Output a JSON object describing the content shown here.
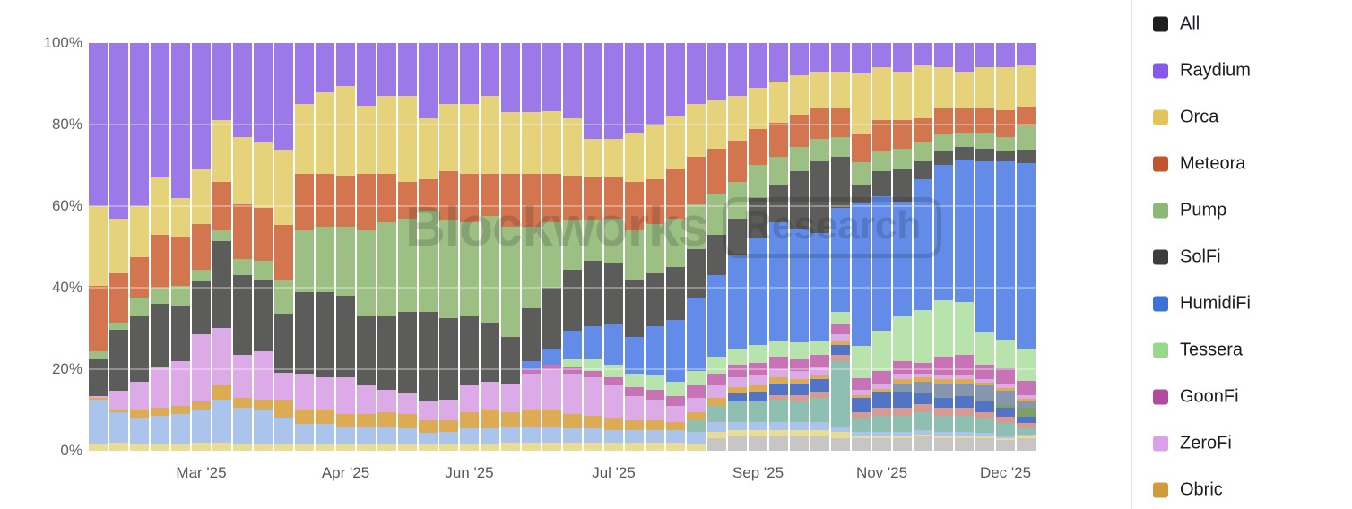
{
  "y_axis": {
    "ticks": [
      "100%",
      "80%",
      "60%",
      "40%",
      "20%",
      "0%"
    ]
  },
  "x_axis": {
    "ticks": [
      {
        "label": "Mar '25",
        "bar": 5
      },
      {
        "label": "Apr '25",
        "bar": 12
      },
      {
        "label": "Jun '25",
        "bar": 18
      },
      {
        "label": "Jul '25",
        "bar": 25
      },
      {
        "label": "Sep '25",
        "bar": 32
      },
      {
        "label": "Nov '25",
        "bar": 38
      },
      {
        "label": "Dec '25",
        "bar": 44
      }
    ]
  },
  "watermark": {
    "brand": "Blockworks",
    "badge": "Research"
  },
  "legend": {
    "items": [
      {
        "label": "All",
        "color": "#1f1f1f"
      },
      {
        "label": "Raydium",
        "color": "#8659ea"
      },
      {
        "label": "Orca",
        "color": "#e2c45a"
      },
      {
        "label": "Meteora",
        "color": "#c2552c"
      },
      {
        "label": "Pump",
        "color": "#8cb873"
      },
      {
        "label": "SolFi",
        "color": "#3d3d3d"
      },
      {
        "label": "HumidiFi",
        "color": "#3b72d9"
      },
      {
        "label": "Tessera",
        "color": "#97d98b"
      },
      {
        "label": "GoonFi",
        "color": "#b5489f"
      },
      {
        "label": "ZeroFi",
        "color": "#d9a1e8"
      },
      {
        "label": "Obric",
        "color": "#d19b3b"
      }
    ]
  },
  "chart_data": {
    "type": "bar",
    "stacked": true,
    "percent_of_total": true,
    "unit": "%",
    "n_bars": 46,
    "ylim": [
      0,
      100
    ],
    "grid": "horizontal 20% steps, overlaid white on bars",
    "legend_position": "right",
    "note": "weekly bars Feb 2025 - Dec 2025; series listed bottom-to-top of stack; values are approximate % share read from pixels",
    "series": [
      {
        "name": "unlabeled-light-gray",
        "color": "#c7c6c4",
        "in_legend": false,
        "values": [
          0,
          0,
          0,
          0,
          0,
          0,
          0,
          0,
          0,
          0,
          0,
          0,
          0,
          0,
          0,
          0,
          0,
          0,
          0,
          0,
          0,
          0,
          0,
          0,
          0,
          0,
          0,
          0,
          0,
          0,
          3,
          3.5,
          3.5,
          3.5,
          3.5,
          3.5,
          3,
          3,
          3,
          3,
          3.5,
          3,
          3,
          3,
          2.5,
          3
        ]
      },
      {
        "name": "unlabeled-pale-yellow",
        "color": "#e9dd96",
        "in_legend": false,
        "values": [
          1.5,
          2,
          1.5,
          1.5,
          1.5,
          2,
          2,
          1.5,
          1.5,
          1.5,
          1.5,
          1.5,
          1.5,
          1.5,
          1.5,
          1.5,
          1.5,
          1.5,
          1.5,
          1.5,
          2,
          2,
          2,
          2,
          2,
          2,
          2,
          2,
          2,
          1.5,
          1.5,
          1.5,
          1.5,
          1.5,
          1.5,
          1.5,
          1.5,
          0.5,
          0.5,
          0.5,
          0.5,
          0.5,
          0.5,
          0.5,
          0.5,
          0.7
        ]
      },
      {
        "name": "unlabeled-pale-blue",
        "color": "#abc4ec",
        "in_legend": false,
        "values": [
          11,
          7.5,
          6.5,
          7,
          7.5,
          8,
          10.5,
          9,
          8.5,
          6.5,
          5,
          5,
          4.5,
          4.5,
          4.5,
          4,
          3,
          3,
          4,
          4,
          4,
          4,
          4,
          3.5,
          3.5,
          3,
          3,
          3,
          3,
          3,
          2.5,
          2,
          2,
          2,
          2,
          2,
          1.5,
          1,
          1,
          1,
          1,
          1,
          1,
          0.8,
          0.8,
          0.3
        ]
      },
      {
        "name": "unlabeled-teal",
        "color": "#8fbfb0",
        "in_legend": false,
        "values": [
          0,
          0,
          0,
          0,
          0,
          0,
          0,
          0,
          0,
          0,
          0,
          0,
          0,
          0,
          0,
          0,
          0,
          0,
          0,
          0,
          0,
          0,
          0,
          0,
          0,
          0,
          0,
          0,
          0,
          3,
          4,
          5,
          5,
          5.5,
          5,
          6,
          16,
          3.5,
          4,
          4,
          4.5,
          4,
          4,
          3.5,
          3,
          1.5
        ]
      },
      {
        "name": "unlabeled-salmon",
        "color": "#d69a93",
        "in_legend": false,
        "values": [
          0,
          0,
          0,
          0,
          0,
          0,
          0,
          0,
          0,
          0,
          0,
          0,
          0,
          0,
          0,
          0,
          0,
          0,
          0,
          0,
          0,
          0,
          0,
          0,
          0,
          0,
          0,
          0,
          0,
          0,
          0,
          0,
          0,
          1,
          1.5,
          1.5,
          1.5,
          1.5,
          2,
          2,
          2,
          2,
          2,
          1.7,
          1.5,
          1.3
        ]
      },
      {
        "name": "unlabeled-navy-blue",
        "color": "#5274c7",
        "in_legend": false,
        "values": [
          0,
          0,
          0,
          0,
          0,
          0,
          0,
          0,
          0,
          0,
          0,
          0,
          0,
          0,
          0,
          0,
          0,
          0,
          0,
          0,
          0,
          0,
          0,
          0,
          0,
          0,
          0,
          0,
          0,
          0,
          0,
          2,
          2.5,
          3,
          3,
          3,
          2.5,
          3.5,
          4,
          4,
          2.5,
          2.5,
          3,
          2.5,
          2.2,
          1.5
        ]
      },
      {
        "name": "unlabeled-olive-green",
        "color": "#7ca065",
        "in_legend": false,
        "values": [
          0,
          0,
          0,
          0,
          0,
          0,
          0,
          0,
          0,
          0,
          0,
          0,
          0,
          0,
          0,
          0,
          0,
          0,
          0,
          0,
          0,
          0,
          0,
          0,
          0,
          0,
          0,
          0,
          0,
          0,
          0,
          0,
          0,
          0,
          0,
          0,
          0,
          0,
          0,
          0,
          0,
          0,
          0,
          0,
          0.8,
          2.2
        ]
      },
      {
        "name": "unlabeled-slate-blue",
        "color": "#8796af",
        "in_legend": false,
        "values": [
          0,
          0,
          0,
          0,
          0,
          0,
          0,
          0,
          0,
          0,
          0,
          0,
          0,
          0,
          0,
          0,
          0,
          0,
          0,
          0,
          0,
          0,
          0,
          0,
          0,
          0,
          0,
          0,
          0,
          0,
          0,
          0,
          0,
          0,
          0,
          0,
          0,
          0,
          0,
          2,
          3,
          3.5,
          3,
          4,
          3.5,
          1.5
        ]
      },
      {
        "name": "Obric",
        "color": "#dcab53",
        "in_legend": true,
        "values": [
          0.5,
          0.7,
          2,
          2,
          2,
          2,
          3.5,
          2.5,
          2.5,
          4.5,
          3.5,
          3.5,
          3,
          3,
          3.5,
          3.5,
          3,
          3,
          4,
          4.5,
          3.5,
          4,
          4,
          3.5,
          3,
          3,
          2.5,
          2.5,
          2,
          2,
          2,
          1.5,
          1.5,
          1.5,
          1,
          1,
          1,
          0.7,
          0.7,
          1,
          1,
          1,
          1,
          0.7,
          0.5,
          0.7
        ]
      },
      {
        "name": "ZeroFi",
        "color": "#dcaae6",
        "in_legend": true,
        "values": [
          0.5,
          4.5,
          7,
          10,
          11,
          16.5,
          14,
          10.5,
          12,
          6.5,
          9,
          8,
          9,
          7,
          5.5,
          5,
          4.5,
          5,
          6.5,
          7,
          7,
          9,
          10,
          10,
          9.5,
          8,
          6,
          5,
          4,
          3.5,
          3,
          2.5,
          2.5,
          2,
          2,
          2,
          1.5,
          1.3,
          1.3,
          1.5,
          1,
          1,
          1,
          0.8,
          1,
          0.9
        ]
      },
      {
        "name": "GoonFi",
        "color": "#c873b6",
        "in_legend": true,
        "values": [
          0,
          0,
          0,
          0,
          0,
          0,
          0,
          0,
          0,
          0,
          0,
          0,
          0,
          0,
          0,
          0,
          0,
          0,
          0,
          0,
          0,
          1,
          1,
          1.5,
          1.5,
          2,
          2,
          2.5,
          2.5,
          3,
          3,
          3,
          3,
          3,
          3,
          3,
          2.5,
          2.8,
          3,
          3,
          2.5,
          4.5,
          5,
          3.5,
          4,
          3.5
        ]
      },
      {
        "name": "Tessera",
        "color": "#b9e3ad",
        "in_legend": true,
        "values": [
          0,
          0,
          0,
          0,
          0,
          0,
          0,
          0,
          0,
          0,
          0,
          0,
          0,
          0,
          0,
          0,
          0,
          0,
          0,
          0,
          0,
          0,
          0,
          2,
          3,
          3,
          3.5,
          3.5,
          3.5,
          3.5,
          4,
          4,
          4.5,
          4,
          4,
          3.5,
          3,
          8,
          10,
          11,
          13,
          14,
          13,
          8,
          7,
          8
        ]
      },
      {
        "name": "HumidiFi",
        "color": "#628ce8",
        "in_legend": true,
        "values": [
          0,
          0,
          0,
          0,
          0,
          0,
          0,
          0,
          0,
          0,
          0,
          0,
          0,
          0,
          0,
          0,
          0,
          0,
          0,
          0,
          0,
          2,
          4,
          7,
          8,
          10,
          9,
          12,
          15,
          18,
          20,
          23,
          26,
          29,
          28,
          26.5,
          25.5,
          35,
          33,
          28,
          32,
          33,
          35,
          42,
          43.7,
          45.4
        ]
      },
      {
        "name": "SolFi",
        "color": "#5c5c5a",
        "in_legend": true,
        "values": [
          9,
          15,
          16,
          15.5,
          13.5,
          13,
          21.5,
          19.5,
          17.5,
          14.5,
          20,
          21,
          20,
          17,
          18,
          20,
          22,
          20,
          17,
          14.5,
          11.5,
          13,
          15,
          15,
          16,
          15,
          14,
          13,
          13,
          12,
          10,
          9,
          10,
          9,
          14,
          17.5,
          12.5,
          4.4,
          6,
          8,
          4.5,
          3.5,
          3,
          3,
          2.5,
          3.3
        ]
      },
      {
        "name": "Pump",
        "color": "#9cc083",
        "in_legend": true,
        "values": [
          2,
          1.8,
          4.5,
          4,
          5,
          3,
          2.5,
          4,
          4.5,
          8,
          15,
          16,
          17,
          21,
          23,
          23,
          25,
          24,
          23,
          26,
          27,
          20,
          16,
          12,
          10,
          11,
          12,
          12,
          12,
          11,
          10,
          9,
          8,
          7,
          6,
          5.5,
          5,
          5.5,
          5,
          5,
          4.5,
          4,
          3.5,
          4,
          3.5,
          6
        ]
      },
      {
        "name": "Meteora",
        "color": "#d3764f",
        "in_legend": true,
        "values": [
          16,
          12,
          10,
          13,
          12,
          11,
          12,
          13.5,
          13,
          13.5,
          14,
          13,
          12.5,
          14,
          12,
          9,
          7.5,
          12,
          12,
          10.5,
          13,
          13,
          12,
          11,
          10.5,
          10,
          12,
          11,
          12,
          11.5,
          11,
          10,
          9,
          8.5,
          8,
          7.5,
          7,
          7,
          7.5,
          7,
          6,
          6.5,
          6,
          6,
          6.5,
          4.5
        ]
      },
      {
        "name": "Orca",
        "color": "#e7d27c",
        "in_legend": true,
        "values": [
          19.5,
          13.5,
          12.5,
          14,
          9.5,
          13.5,
          15,
          16.5,
          16,
          18.5,
          17,
          20,
          22,
          16.6,
          19,
          21,
          15,
          16.5,
          17,
          19,
          15,
          15,
          15.4,
          14,
          9.5,
          9.5,
          12,
          13.5,
          13,
          13,
          12,
          11,
          10,
          10,
          9.5,
          9,
          9,
          14.8,
          13,
          12,
          13,
          10,
          9,
          10,
          10.5,
          10.2
        ]
      },
      {
        "name": "Raydium",
        "color": "#9b79e8",
        "in_legend": true,
        "values": [
          40,
          43,
          40,
          33,
          38,
          31,
          19,
          23,
          24.5,
          26,
          15,
          12,
          10.5,
          15.4,
          13,
          13,
          18.5,
          15,
          15,
          13,
          17,
          17,
          16.6,
          18.5,
          23.5,
          23.5,
          22,
          20,
          18,
          15,
          14,
          13,
          11,
          9.5,
          8,
          7,
          7,
          7.5,
          6,
          7,
          5.5,
          6,
          7,
          6,
          6,
          5.5
        ]
      }
    ]
  }
}
